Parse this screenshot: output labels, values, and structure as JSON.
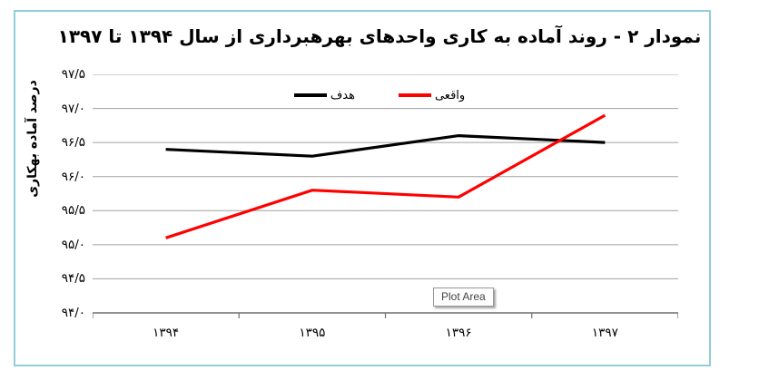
{
  "window": {
    "border_color": "#92cddc",
    "background": "#ffffff"
  },
  "title": {
    "text": "نمودار ۲ - روند آماده به کاری واحدهای بهرهبرداری از سال ۱۳۹۴ تا ۱۳۹۷"
  },
  "legend": {
    "items": [
      {
        "label": "هدف",
        "color": "#000000"
      },
      {
        "label": "واقعی",
        "color": "#ff0000"
      }
    ]
  },
  "y_axis": {
    "title": "درصد آماده بهکاری",
    "tick_labels": [
      "۹۷/۵",
      "۹۷/۰",
      "۹۶/۵",
      "۹۶/۰",
      "۹۵/۵",
      "۹۵/۰",
      "۹۴/۵",
      "۹۴/۰"
    ]
  },
  "x_axis": {
    "tick_labels": [
      "۱۳۹۴",
      "۱۳۹۵",
      "۱۳۹۶",
      "۱۳۹۷"
    ]
  },
  "tooltip": {
    "text": "Plot Area"
  },
  "colors": {
    "gridline": "#a0a0a0",
    "axis": "#6e6e6e",
    "series_target": "#000000",
    "series_actual": "#ff0000"
  },
  "chart_data": {
    "type": "line",
    "categories": [
      "۱۳۹۴",
      "۱۳۹۵",
      "۱۳۹۶",
      "۱۳۹۷"
    ],
    "series": [
      {
        "name": "هدف",
        "color": "#000000",
        "values": [
          96.4,
          96.3,
          96.6,
          96.5
        ]
      },
      {
        "name": "واقعی",
        "color": "#ff0000",
        "values": [
          95.1,
          95.8,
          95.7,
          96.9
        ]
      }
    ],
    "title": "نمودار ۲ - روند آماده به کاری واحدهای بهرهبرداری از سال ۱۳۹۴ تا ۱۳۹۷",
    "xlabel": "",
    "ylabel": "درصد آماده بهکاری",
    "ylim": [
      94.0,
      97.5
    ],
    "ytick_step": 0.5,
    "grid": true,
    "legend_position": "top-center"
  }
}
